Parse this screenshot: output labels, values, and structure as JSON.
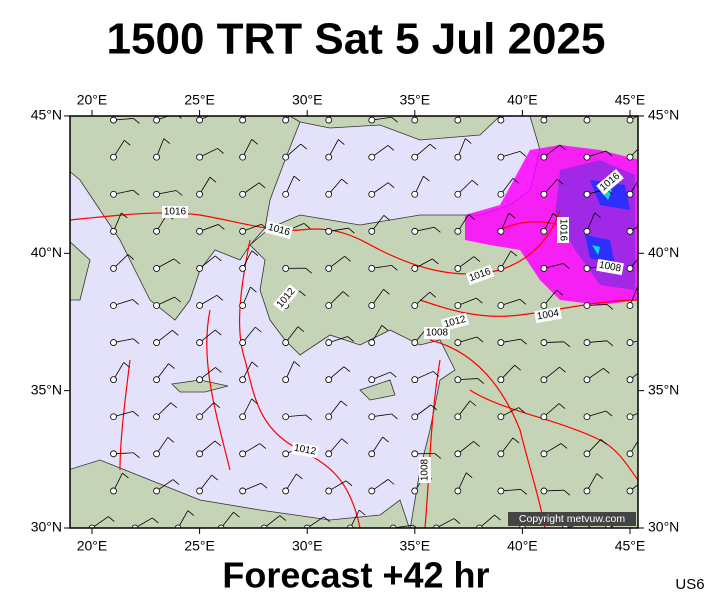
{
  "header": {
    "title": "1500 TRT Sat 5 Jul 2025"
  },
  "map": {
    "lon_ticks": [
      {
        "value": 20,
        "label": "20°E"
      },
      {
        "value": 25,
        "label": "25°E"
      },
      {
        "value": 30,
        "label": "30°E"
      },
      {
        "value": 35,
        "label": "35°E"
      },
      {
        "value": 40,
        "label": "40°E"
      },
      {
        "value": 45,
        "label": "45°E"
      }
    ],
    "lat_ticks": [
      {
        "value": 30,
        "label": "30°N"
      },
      {
        "value": 35,
        "label": "35°N"
      },
      {
        "value": 40,
        "label": "40°N"
      },
      {
        "value": 45,
        "label": "45°N"
      }
    ],
    "isobar_labels": [
      "1016",
      "1016",
      "1012",
      "1016",
      "1012",
      "1008",
      "1004",
      "1016",
      "1016",
      "1008",
      "1012",
      "1008"
    ],
    "copyright": "Copyright metvuw.com"
  },
  "footer": {
    "forecast": "Forecast +42 hr",
    "code": "US6"
  }
}
